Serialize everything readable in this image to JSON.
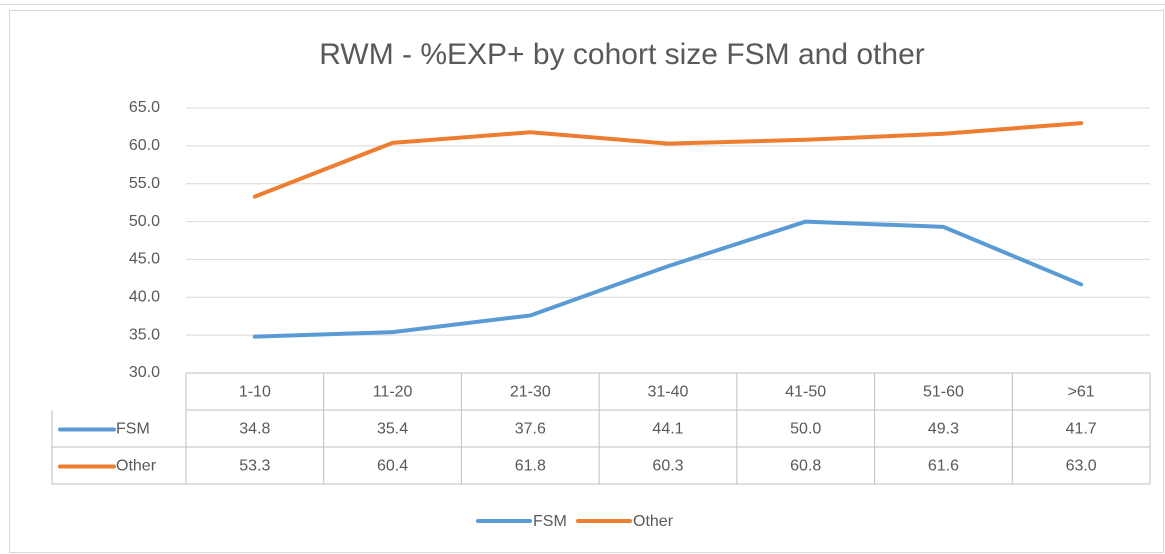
{
  "chart_data": {
    "type": "line",
    "title": "RWM - %EXP+ by cohort size FSM and other",
    "categories": [
      "1-10",
      "11-20",
      "21-30",
      "31-40",
      "41-50",
      "51-60",
      ">61"
    ],
    "series": [
      {
        "name": "FSM",
        "color": "#5b9bd5",
        "values": [
          34.8,
          35.4,
          37.6,
          44.1,
          50.0,
          49.3,
          41.7
        ],
        "value_labels": [
          "34.8",
          "35.4",
          "37.6",
          "44.1",
          "50.0",
          "49.3",
          "41.7"
        ]
      },
      {
        "name": "Other",
        "color": "#ed7d31",
        "values": [
          53.3,
          60.4,
          61.8,
          60.3,
          60.8,
          61.6,
          63.0
        ],
        "value_labels": [
          "53.3",
          "60.4",
          "61.8",
          "60.3",
          "60.8",
          "61.6",
          "63.0"
        ]
      }
    ],
    "ylim": [
      30,
      65
    ],
    "yticks": [
      {
        "value": 30,
        "label": "30.0"
      },
      {
        "value": 35,
        "label": "35.0"
      },
      {
        "value": 40,
        "label": "40.0"
      },
      {
        "value": 45,
        "label": "45.0"
      },
      {
        "value": 50,
        "label": "50.0"
      },
      {
        "value": 55,
        "label": "55.0"
      },
      {
        "value": 60,
        "label": "60.0"
      },
      {
        "value": 65,
        "label": "65.0"
      }
    ],
    "grid": true,
    "legend": "bottom"
  }
}
